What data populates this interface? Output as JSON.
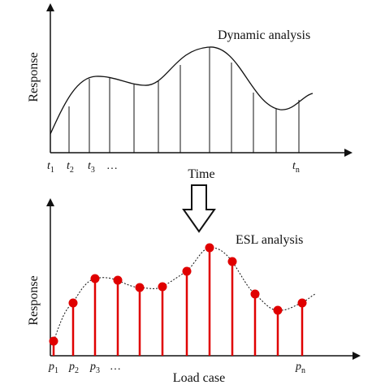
{
  "top": {
    "y_label": "Response",
    "title": "Dynamic analysis",
    "x_label": "Time",
    "ticks": [
      {
        "base": "t",
        "sub": "1"
      },
      {
        "base": "t",
        "sub": "2"
      },
      {
        "base": "t",
        "sub": "3"
      },
      {
        "base": "…"
      },
      {
        "base": "t",
        "sub": "n"
      }
    ]
  },
  "bottom": {
    "y_label": "Response",
    "title": "ESL analysis",
    "x_label": "Load case",
    "ticks": [
      {
        "base": "p",
        "sub": "1"
      },
      {
        "base": "p",
        "sub": "2"
      },
      {
        "base": "p",
        "sub": "3"
      },
      {
        "base": "…"
      },
      {
        "base": "p",
        "sub": "n"
      }
    ]
  }
}
